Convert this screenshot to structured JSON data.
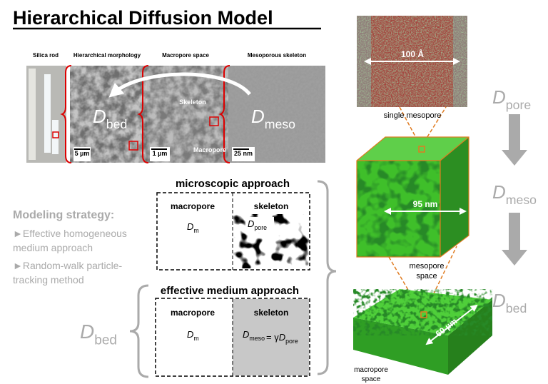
{
  "title": "Hierarchical Diffusion Model",
  "sem_panel": {
    "labels": [
      "Silica rod",
      "Hierarchical morphology",
      "Macropore space",
      "Mesoporous skeleton"
    ],
    "scale_bars": [
      "5 µm",
      "1 µm",
      "25 nm"
    ],
    "annotations": [
      "Skeleton",
      "Macropore"
    ],
    "d_bed": {
      "symbol": "D",
      "sub": "bed"
    },
    "d_meso": {
      "symbol": "D",
      "sub": "meso"
    }
  },
  "modeling_strategy": {
    "heading": "Modeling strategy:",
    "items": [
      [
        "►Effective homogeneous",
        "medium approach"
      ],
      [
        "►Random-walk particle-",
        "tracking method"
      ]
    ]
  },
  "microscopic": {
    "title": "microscopic approach",
    "left_label": "macropore",
    "right_label": "skeleton",
    "left_symbol": {
      "symbol": "D",
      "sub": "m"
    },
    "right_symbol": {
      "symbol": "D",
      "sub": "pore"
    }
  },
  "effective": {
    "title": "effective medium approach",
    "left_label": "macropore",
    "right_label": "skeleton",
    "left_symbol": {
      "symbol": "D",
      "sub": "m"
    },
    "right_equation": {
      "lhs": {
        "symbol": "D",
        "sub": "meso"
      },
      "op": "= γ",
      "rhs": {
        "symbol": "D",
        "sub": "pore"
      }
    }
  },
  "left_d_bed": {
    "symbol": "D",
    "sub": "bed"
  },
  "structures": {
    "mesopore_scale": "100 Å",
    "mesopore_caption": "single mesopore",
    "cube_scale": "95 nm",
    "cube_caption": [
      "mesopore",
      "space"
    ],
    "slab_scale": "60 µm",
    "slab_caption": [
      "macropore",
      "space"
    ]
  },
  "right_sequence": [
    {
      "symbol": "D",
      "sub": "pore"
    },
    {
      "symbol": "D",
      "sub": "meso"
    },
    {
      "symbol": "D",
      "sub": "bed"
    }
  ]
}
